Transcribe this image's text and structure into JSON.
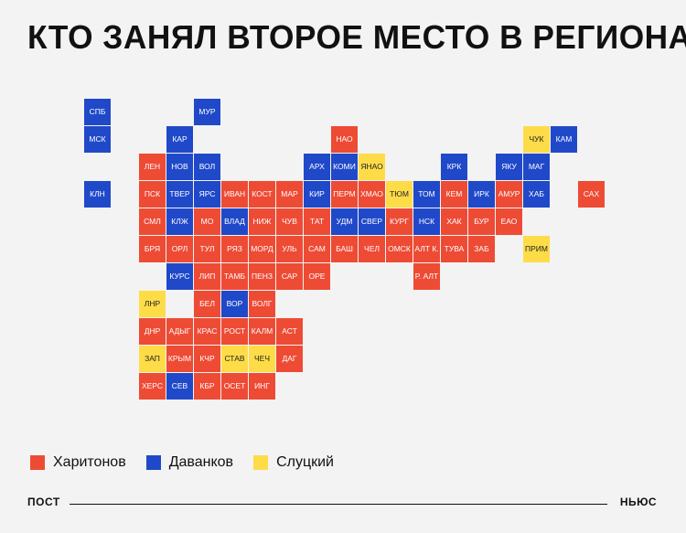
{
  "title": "КТО ЗАНЯЛ ВТОРОЕ МЕСТО В РЕГИОНАХ",
  "colors": {
    "r": "#ee4b35",
    "b": "#2049c9",
    "y": "#fedc48"
  },
  "legend": [
    {
      "key": "r",
      "label": "Харитонов"
    },
    {
      "key": "b",
      "label": "Даванков"
    },
    {
      "key": "y",
      "label": "Слуцкий"
    }
  ],
  "regions": [
    {
      "label": "СПБ",
      "party": "b",
      "col": 0,
      "row": 0
    },
    {
      "label": "МУР",
      "party": "b",
      "col": 4,
      "row": 0
    },
    {
      "label": "МСК",
      "party": "b",
      "col": 0,
      "row": 1
    },
    {
      "label": "КАР",
      "party": "b",
      "col": 3,
      "row": 1
    },
    {
      "label": "НАО",
      "party": "r",
      "col": 9,
      "row": 1
    },
    {
      "label": "ЧУК",
      "party": "y",
      "col": 16,
      "row": 1
    },
    {
      "label": "КАМ",
      "party": "b",
      "col": 17,
      "row": 1
    },
    {
      "label": "ЛЕН",
      "party": "r",
      "col": 2,
      "row": 2
    },
    {
      "label": "НОВ",
      "party": "b",
      "col": 3,
      "row": 2
    },
    {
      "label": "ВОЛ",
      "party": "b",
      "col": 4,
      "row": 2
    },
    {
      "label": "АРХ",
      "party": "b",
      "col": 8,
      "row": 2
    },
    {
      "label": "КОМИ",
      "party": "b",
      "col": 9,
      "row": 2
    },
    {
      "label": "ЯНАО",
      "party": "y",
      "col": 10,
      "row": 2
    },
    {
      "label": "КРК",
      "party": "b",
      "col": 13,
      "row": 2
    },
    {
      "label": "ЯКУ",
      "party": "b",
      "col": 15,
      "row": 2
    },
    {
      "label": "МАГ",
      "party": "b",
      "col": 16,
      "row": 2
    },
    {
      "label": "КЛН",
      "party": "b",
      "col": 0,
      "row": 3
    },
    {
      "label": "ПСК",
      "party": "r",
      "col": 2,
      "row": 3
    },
    {
      "label": "ТВЕР",
      "party": "b",
      "col": 3,
      "row": 3
    },
    {
      "label": "ЯРС",
      "party": "b",
      "col": 4,
      "row": 3
    },
    {
      "label": "ИВАН",
      "party": "r",
      "col": 5,
      "row": 3
    },
    {
      "label": "КОСТ",
      "party": "r",
      "col": 6,
      "row": 3
    },
    {
      "label": "МАР",
      "party": "r",
      "col": 7,
      "row": 3
    },
    {
      "label": "КИР",
      "party": "b",
      "col": 8,
      "row": 3
    },
    {
      "label": "ПЕРМ",
      "party": "r",
      "col": 9,
      "row": 3
    },
    {
      "label": "ХМАО",
      "party": "r",
      "col": 10,
      "row": 3
    },
    {
      "label": "ТЮМ",
      "party": "y",
      "col": 11,
      "row": 3
    },
    {
      "label": "ТОМ",
      "party": "b",
      "col": 12,
      "row": 3
    },
    {
      "label": "КЕМ",
      "party": "r",
      "col": 13,
      "row": 3
    },
    {
      "label": "ИРК",
      "party": "b",
      "col": 14,
      "row": 3
    },
    {
      "label": "АМУР",
      "party": "r",
      "col": 15,
      "row": 3
    },
    {
      "label": "ХАБ",
      "party": "b",
      "col": 16,
      "row": 3
    },
    {
      "label": "САХ",
      "party": "r",
      "col": 18,
      "row": 3
    },
    {
      "label": "СМЛ",
      "party": "r",
      "col": 2,
      "row": 4
    },
    {
      "label": "КЛЖ",
      "party": "b",
      "col": 3,
      "row": 4
    },
    {
      "label": "МО",
      "party": "r",
      "col": 4,
      "row": 4
    },
    {
      "label": "ВЛАД",
      "party": "b",
      "col": 5,
      "row": 4
    },
    {
      "label": "НИЖ",
      "party": "r",
      "col": 6,
      "row": 4
    },
    {
      "label": "ЧУВ",
      "party": "r",
      "col": 7,
      "row": 4
    },
    {
      "label": "ТАТ",
      "party": "r",
      "col": 8,
      "row": 4
    },
    {
      "label": "УДМ",
      "party": "b",
      "col": 9,
      "row": 4
    },
    {
      "label": "СВЕР",
      "party": "b",
      "col": 10,
      "row": 4
    },
    {
      "label": "КУРГ",
      "party": "r",
      "col": 11,
      "row": 4
    },
    {
      "label": "НСК",
      "party": "b",
      "col": 12,
      "row": 4
    },
    {
      "label": "ХАК",
      "party": "r",
      "col": 13,
      "row": 4
    },
    {
      "label": "БУР",
      "party": "r",
      "col": 14,
      "row": 4
    },
    {
      "label": "ЕАО",
      "party": "r",
      "col": 15,
      "row": 4
    },
    {
      "label": "БРЯ",
      "party": "r",
      "col": 2,
      "row": 5
    },
    {
      "label": "ОРЛ",
      "party": "r",
      "col": 3,
      "row": 5
    },
    {
      "label": "ТУЛ",
      "party": "r",
      "col": 4,
      "row": 5
    },
    {
      "label": "РЯЗ",
      "party": "r",
      "col": 5,
      "row": 5
    },
    {
      "label": "МОРД",
      "party": "r",
      "col": 6,
      "row": 5
    },
    {
      "label": "УЛЬ",
      "party": "r",
      "col": 7,
      "row": 5
    },
    {
      "label": "САМ",
      "party": "r",
      "col": 8,
      "row": 5
    },
    {
      "label": "БАШ",
      "party": "r",
      "col": 9,
      "row": 5
    },
    {
      "label": "ЧЕЛ",
      "party": "r",
      "col": 10,
      "row": 5
    },
    {
      "label": "ОМСК",
      "party": "r",
      "col": 11,
      "row": 5
    },
    {
      "label": "АЛТ К.",
      "party": "r",
      "col": 12,
      "row": 5
    },
    {
      "label": "ТУВА",
      "party": "r",
      "col": 13,
      "row": 5
    },
    {
      "label": "ЗАБ",
      "party": "r",
      "col": 14,
      "row": 5
    },
    {
      "label": "ПРИМ",
      "party": "y",
      "col": 16,
      "row": 5
    },
    {
      "label": "КУРС",
      "party": "b",
      "col": 3,
      "row": 6
    },
    {
      "label": "ЛИП",
      "party": "r",
      "col": 4,
      "row": 6
    },
    {
      "label": "ТАМБ",
      "party": "r",
      "col": 5,
      "row": 6
    },
    {
      "label": "ПЕНЗ",
      "party": "r",
      "col": 6,
      "row": 6
    },
    {
      "label": "САР",
      "party": "r",
      "col": 7,
      "row": 6
    },
    {
      "label": "ОРЕ",
      "party": "r",
      "col": 8,
      "row": 6
    },
    {
      "label": "Р. АЛТ",
      "party": "r",
      "col": 12,
      "row": 6
    },
    {
      "label": "ЛНР",
      "party": "y",
      "col": 2,
      "row": 7
    },
    {
      "label": "БЕЛ",
      "party": "r",
      "col": 4,
      "row": 7
    },
    {
      "label": "ВОР",
      "party": "b",
      "col": 5,
      "row": 7
    },
    {
      "label": "ВОЛГ",
      "party": "r",
      "col": 6,
      "row": 7
    },
    {
      "label": "ДНР",
      "party": "r",
      "col": 2,
      "row": 8
    },
    {
      "label": "АДЫГ",
      "party": "r",
      "col": 3,
      "row": 8
    },
    {
      "label": "КРАС",
      "party": "r",
      "col": 4,
      "row": 8
    },
    {
      "label": "РОСТ",
      "party": "r",
      "col": 5,
      "row": 8
    },
    {
      "label": "КАЛМ",
      "party": "r",
      "col": 6,
      "row": 8
    },
    {
      "label": "АСТ",
      "party": "r",
      "col": 7,
      "row": 8
    },
    {
      "label": "ЗАП",
      "party": "y",
      "col": 2,
      "row": 9
    },
    {
      "label": "КРЫМ",
      "party": "r",
      "col": 3,
      "row": 9
    },
    {
      "label": "КЧР",
      "party": "r",
      "col": 4,
      "row": 9
    },
    {
      "label": "СТАВ",
      "party": "y",
      "col": 5,
      "row": 9
    },
    {
      "label": "ЧЕЧ",
      "party": "y",
      "col": 6,
      "row": 9
    },
    {
      "label": "ДАГ",
      "party": "r",
      "col": 7,
      "row": 9
    },
    {
      "label": "ХЕРС",
      "party": "r",
      "col": 2,
      "row": 10
    },
    {
      "label": "СЕВ",
      "party": "b",
      "col": 3,
      "row": 10
    },
    {
      "label": "КБР",
      "party": "r",
      "col": 4,
      "row": 10
    },
    {
      "label": "ОСЕТ",
      "party": "r",
      "col": 5,
      "row": 10
    },
    {
      "label": "ИНГ",
      "party": "r",
      "col": 6,
      "row": 10
    }
  ],
  "footer": {
    "left": "ПОСТ",
    "right": "НЬЮС"
  }
}
